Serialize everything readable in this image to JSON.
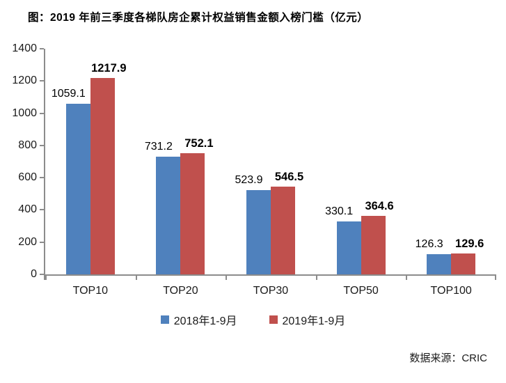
{
  "title": "图：2019 年前三季度各梯队房企累计权益销售金额入榜门槛（亿元）",
  "source": "数据来源：CRIC",
  "colors": {
    "series_2018": "#4F81BD",
    "series_2019": "#C0504D",
    "axis": "#8C8C8C",
    "text": "#000000"
  },
  "chart_data": {
    "type": "bar",
    "title": "图：2019 年前三季度各梯队房企累计权益销售金额入榜门槛（亿元）",
    "categories": [
      "TOP10",
      "TOP20",
      "TOP30",
      "TOP50",
      "TOP100"
    ],
    "series": [
      {
        "name": "2018年1-9月",
        "color": "#4F81BD",
        "values": [
          1059.1,
          731.2,
          523.9,
          330.1,
          126.3
        ]
      },
      {
        "name": "2019年1-9月",
        "color": "#C0504D",
        "values": [
          1217.9,
          752.1,
          546.5,
          364.6,
          129.6
        ]
      }
    ],
    "xlabel": "",
    "ylabel": "",
    "ylim": [
      0,
      1400
    ],
    "yticks": [
      0,
      200,
      400,
      600,
      800,
      1000,
      1200,
      1400
    ],
    "grid": false,
    "legend_position": "bottom",
    "value_labels": true
  }
}
